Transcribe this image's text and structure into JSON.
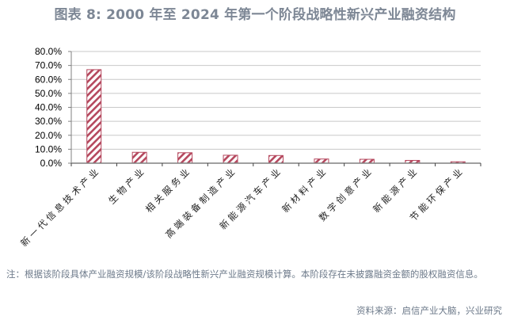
{
  "title": "图表 8:  2000 年至 2024 年第一个阶段战略性新兴产业融资结构",
  "note": "注：根据该阶段具体产业融资规模/该阶段战略性新兴产业融资规模计算。本阶段存在未披露融资金额的股权融资信息。",
  "source": "资料来源：启信产业大脑，兴业研究",
  "colors": {
    "bar_stroke": "#b5485e",
    "bar_hatch": "#b5485e",
    "grid": "#c8c8c8",
    "axis": "#808080"
  },
  "chart_data": {
    "type": "bar",
    "title": "2000 年至 2024 年第一个阶段战略性新兴产业融资结构",
    "xlabel": "",
    "ylabel": "",
    "categories": [
      "新一代信息技术产业",
      "生物产业",
      "相关服务业",
      "高端装备制造产业",
      "新能源汽车产业",
      "新材料产业",
      "数字创意产业",
      "新能源产业",
      "节能环保产业"
    ],
    "values": [
      67.0,
      7.8,
      7.5,
      5.7,
      5.5,
      3.0,
      2.8,
      2.0,
      1.0
    ],
    "unit": "%",
    "ylim": [
      0,
      80
    ],
    "yticks": [
      "0.0%",
      "10.0%",
      "20.0%",
      "30.0%",
      "40.0%",
      "50.0%",
      "60.0%",
      "70.0%",
      "80.0%"
    ],
    "grid": true,
    "legend": "none",
    "bar_style": "diagonal-hatch"
  }
}
